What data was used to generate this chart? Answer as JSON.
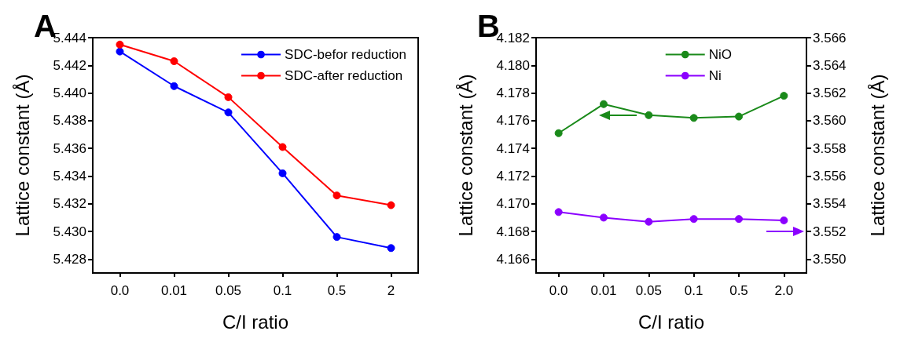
{
  "chart_data": [
    {
      "type": "line",
      "title": "A",
      "xlabel": "C/I ratio",
      "ylabel": "Lattice constant (Å)",
      "categories": [
        "0.0",
        "0.01",
        "0.05",
        "0.1",
        "0.5",
        "2"
      ],
      "series": [
        {
          "name": "SDC-befor reduction",
          "color": "#0000ff",
          "values": [
            5.443,
            5.4405,
            5.4386,
            5.4342,
            5.4296,
            5.4288
          ]
        },
        {
          "name": "SDC-after reduction",
          "color": "#ff0000",
          "values": [
            5.4435,
            5.4423,
            5.4397,
            5.4361,
            5.4326,
            5.4319
          ]
        }
      ],
      "ylim": [
        5.427,
        5.444
      ],
      "yticks": [
        5.428,
        {
          "value": 5.43,
          "label": "5.430"
        },
        5.432,
        5.434,
        5.436,
        5.438,
        {
          "value": 5.44,
          "label": "5.440"
        },
        5.442,
        5.444
      ],
      "grid": false,
      "legend": "top right",
      "marker": "circle"
    },
    {
      "type": "line",
      "title": "B",
      "xlabel": "C/I ratio",
      "ylabel": "Lattice constant (Å)",
      "y2label": "Lattice constant (Å)",
      "categories": [
        "0.0",
        "0.01",
        "0.05",
        "0.1",
        "0.5",
        "2.0"
      ],
      "series": [
        {
          "name": "NiO",
          "color": "#1a8a1a",
          "values": [
            4.1751,
            4.1772,
            4.1764,
            4.1762,
            4.1763,
            4.1778
          ]
        },
        {
          "name": "Ni",
          "color": "#8b00ff",
          "axis": "y2",
          "values": [
            3.5534,
            3.553,
            3.5527,
            3.5529,
            3.5529,
            3.5528
          ]
        }
      ],
      "ylim": [
        4.165,
        4.182
      ],
      "yticks": [
        4.166,
        4.168,
        {
          "value": 4.17,
          "label": "4.170"
        },
        4.172,
        4.174,
        4.176,
        4.178,
        {
          "value": 4.18,
          "label": "4.180"
        },
        4.182
      ],
      "y2lim": [
        3.549,
        3.566
      ],
      "y2ticks": [
        {
          "value": 3.55,
          "label": "3.550"
        },
        3.552,
        3.554,
        3.556,
        3.558,
        {
          "value": 3.56,
          "label": "3.560"
        },
        3.562,
        3.564,
        3.566
      ],
      "grid": false,
      "legend": "top right",
      "marker": "circle"
    }
  ]
}
